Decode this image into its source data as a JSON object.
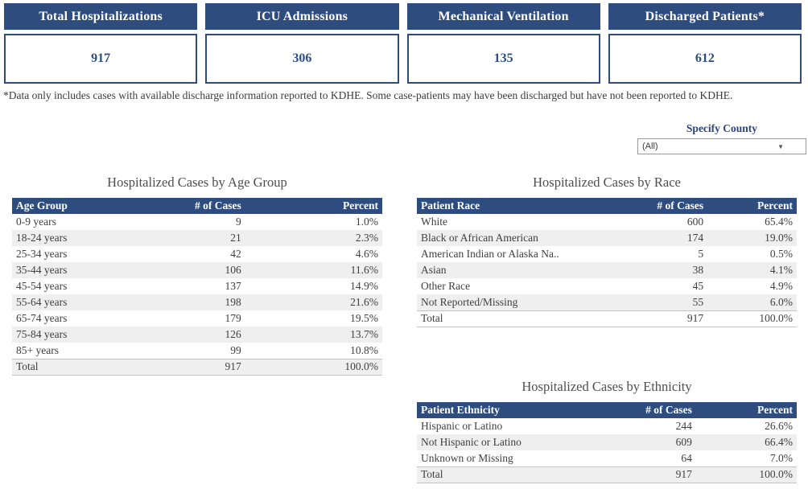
{
  "kpi_cards": [
    {
      "label": "Total Hospitalizations",
      "value": "917"
    },
    {
      "label": "ICU Admissions",
      "value": "306"
    },
    {
      "label": "Mechanical Ventilation",
      "value": "135"
    },
    {
      "label": "Discharged Patients*",
      "value": "612"
    }
  ],
  "footnote": "*Data only includes cases with available discharge information reported to KDHE. Some case-patients may have been discharged but have not been reported to KDHE.",
  "county_filter": {
    "label": "Specify County",
    "selected_value": "(All)",
    "dropdown_icon": "caret-down"
  },
  "tables": {
    "age_group": {
      "title": "Hospitalized Cases by Age Group",
      "headers": [
        "Age Group",
        "# of Cases",
        "Percent"
      ],
      "rows": [
        [
          "0-9 years",
          "9",
          "1.0%"
        ],
        [
          "18-24 years",
          "21",
          "2.3%"
        ],
        [
          "25-34 years",
          "42",
          "4.6%"
        ],
        [
          "35-44 years",
          "106",
          "11.6%"
        ],
        [
          "45-54 years",
          "137",
          "14.9%"
        ],
        [
          "55-64 years",
          "198",
          "21.6%"
        ],
        [
          "65-74 years",
          "179",
          "19.5%"
        ],
        [
          "75-84 years",
          "126",
          "13.7%"
        ],
        [
          "85+ years",
          "99",
          "10.8%"
        ]
      ],
      "total_row": [
        "Total",
        "917",
        "100.0%"
      ]
    },
    "race": {
      "title": "Hospitalized Cases by Race",
      "headers": [
        "Patient Race",
        "# of Cases",
        "Percent"
      ],
      "rows": [
        [
          "White",
          "600",
          "65.4%"
        ],
        [
          "Black or African American",
          "174",
          "19.0%"
        ],
        [
          "American Indian or Alaska Na..",
          "5",
          "0.5%"
        ],
        [
          "Asian",
          "38",
          "4.1%"
        ],
        [
          "Other Race",
          "45",
          "4.9%"
        ],
        [
          "Not Reported/Missing",
          "55",
          "6.0%"
        ]
      ],
      "total_row": [
        "Total",
        "917",
        "100.0%"
      ]
    },
    "ethnicity": {
      "title": "Hospitalized Cases by Ethnicity",
      "headers": [
        "Patient Ethnicity",
        "# of Cases",
        "Percent"
      ],
      "rows": [
        [
          "Hispanic or Latino",
          "244",
          "26.6%"
        ],
        [
          "Not Hispanic or Latino",
          "609",
          "66.4%"
        ],
        [
          "Unknown or Missing",
          "64",
          "7.0%"
        ]
      ],
      "total_row": [
        "Total",
        "917",
        "100.0%"
      ]
    }
  },
  "colors": {
    "navy": "#2E4D7E",
    "alt_row_gray": "#EFEFEF",
    "header_text": "#FFFFFF",
    "body_text": "#3F3F3F",
    "title_text": "#4E4E4E",
    "filter_label_blue": "#2C447E"
  }
}
